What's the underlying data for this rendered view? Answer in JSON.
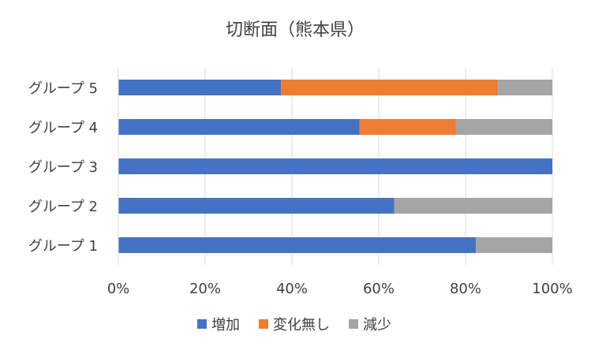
{
  "chart_data": {
    "type": "bar",
    "orientation": "horizontal",
    "stacked": "percent",
    "title": "切断面（熊本県）",
    "categories": [
      "グループ 5",
      "グループ 4",
      "グループ 3",
      "グループ 2",
      "グループ 1"
    ],
    "series": [
      {
        "name": "増加",
        "color": "#4472C4",
        "values": [
          37.5,
          55.6,
          100,
          63.6,
          82.4
        ]
      },
      {
        "name": "変化無し",
        "color": "#ED7D31",
        "values": [
          50.0,
          22.2,
          0,
          0,
          0
        ]
      },
      {
        "name": "減少",
        "color": "#A5A5A5",
        "values": [
          12.5,
          22.2,
          0,
          36.4,
          17.6
        ]
      }
    ],
    "x_ticks": [
      "0%",
      "20%",
      "40%",
      "60%",
      "80%",
      "100%"
    ],
    "xlim": [
      0,
      100
    ],
    "grid": true,
    "legend_position": "bottom"
  }
}
